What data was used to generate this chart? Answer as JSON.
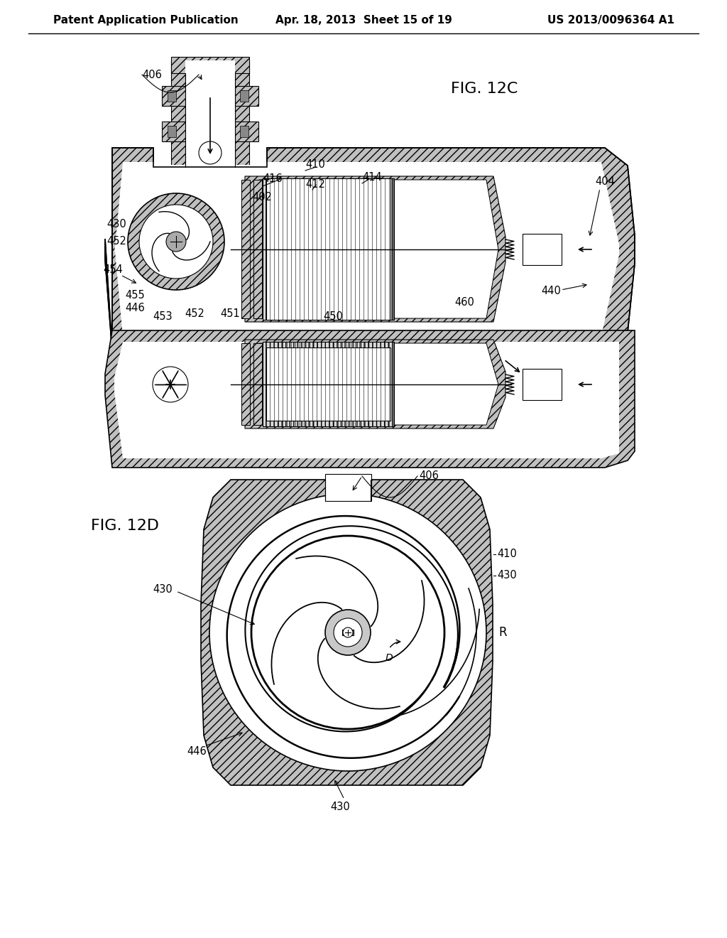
{
  "background_color": "#ffffff",
  "header_left": "Patent Application Publication",
  "header_center": "Apr. 18, 2013  Sheet 15 of 19",
  "header_right": "US 2013/0096364 A1",
  "header_fontsize": 11,
  "fig12c_title": "FIG. 12C",
  "fig12d_title": "FIG. 12D",
  "hatch_gray": "#c0c0c0",
  "label_fontsize": 10.5,
  "title_fontsize": 16
}
